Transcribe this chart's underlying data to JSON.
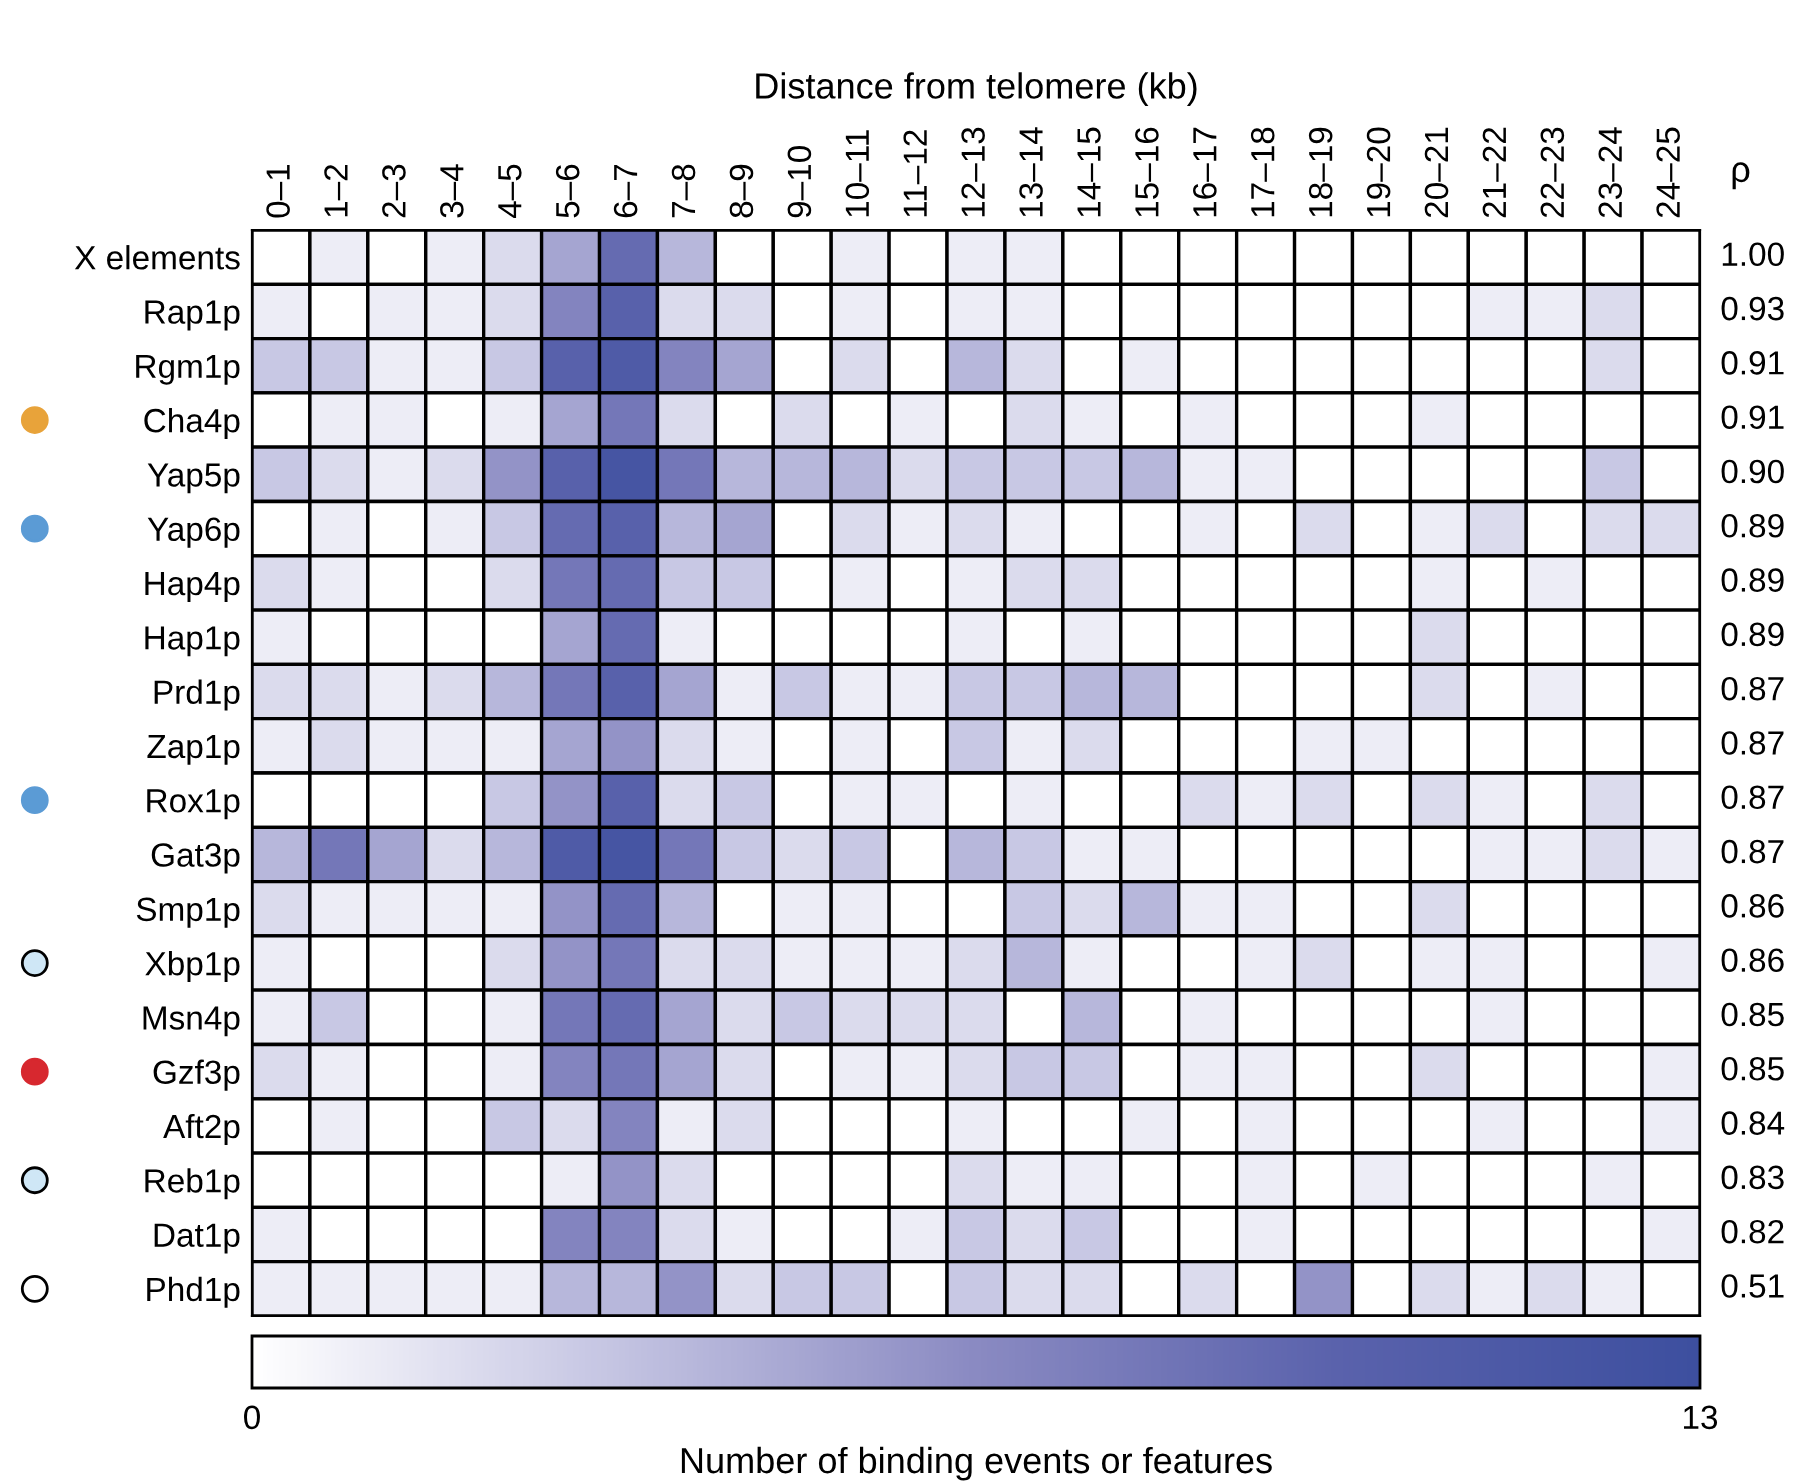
{
  "chart_data": {
    "type": "heatmap",
    "xlabel": "Distance from telomere (kb)",
    "clabel": "Number of binding events or features",
    "annotations": [
      "ρ"
    ],
    "categories": [
      "0–1",
      "1–2",
      "2–3",
      "3–4",
      "4–5",
      "5–6",
      "6–7",
      "7–8",
      "8–9",
      "9–10",
      "10–11",
      "11–12",
      "12–13",
      "13–14",
      "14–15",
      "15–16",
      "16–17",
      "17–18",
      "18–19",
      "19–20",
      "20–21",
      "21–22",
      "22–23",
      "23–24",
      "24–25"
    ],
    "y_categories": [
      "X elements",
      "Rap1p",
      "Rgm1p",
      "Cha4p",
      "Yap5p",
      "Yap6p",
      "Hap4p",
      "Hap1p",
      "Prd1p",
      "Zap1p",
      "Rox1p",
      "Gat3p",
      "Smp1p",
      "Xbp1p",
      "Msn4p",
      "Gzf3p",
      "Aft2p",
      "Reb1p",
      "Dat1p",
      "Phd1p"
    ],
    "y2_categories": [
      "1.00",
      "0.93",
      "0.91",
      "0.91",
      "0.90",
      "0.89",
      "0.89",
      "0.89",
      "0.87",
      "0.87",
      "0.87",
      "0.87",
      "0.86",
      "0.86",
      "0.85",
      "0.85",
      "0.84",
      "0.83",
      "0.82",
      "0.51"
    ],
    "cells": [
      [
        0,
        1,
        0,
        1,
        2,
        5,
        9,
        4,
        0,
        0,
        1,
        0,
        1,
        1,
        0,
        0,
        0,
        0,
        0,
        0,
        0,
        0,
        0,
        0,
        0
      ],
      [
        1,
        0,
        1,
        1,
        2,
        7,
        10,
        2,
        2,
        0,
        1,
        0,
        1,
        1,
        0,
        0,
        0,
        0,
        0,
        0,
        0,
        1,
        1,
        2,
        0
      ],
      [
        3,
        3,
        1,
        1,
        3,
        10,
        11,
        7,
        5,
        0,
        2,
        0,
        4,
        2,
        0,
        1,
        0,
        0,
        0,
        0,
        0,
        0,
        0,
        2,
        0
      ],
      [
        0,
        1,
        1,
        0,
        1,
        5,
        8,
        2,
        0,
        2,
        0,
        1,
        0,
        2,
        1,
        0,
        1,
        0,
        0,
        0,
        1,
        0,
        0,
        0,
        0
      ],
      [
        3,
        2,
        1,
        2,
        6,
        10,
        12,
        8,
        4,
        4,
        4,
        2,
        3,
        3,
        3,
        4,
        1,
        1,
        0,
        0,
        0,
        0,
        0,
        3,
        0
      ],
      [
        0,
        1,
        0,
        1,
        3,
        9,
        10,
        4,
        5,
        0,
        2,
        1,
        2,
        1,
        0,
        0,
        1,
        0,
        2,
        0,
        1,
        2,
        0,
        2,
        2
      ],
      [
        2,
        1,
        0,
        0,
        2,
        8,
        9,
        3,
        3,
        0,
        1,
        0,
        1,
        2,
        2,
        0,
        0,
        0,
        0,
        0,
        1,
        0,
        1,
        0,
        0
      ],
      [
        1,
        0,
        0,
        0,
        0,
        5,
        9,
        1,
        0,
        0,
        0,
        0,
        1,
        0,
        1,
        0,
        0,
        0,
        0,
        0,
        2,
        0,
        0,
        0,
        0
      ],
      [
        2,
        2,
        1,
        2,
        4,
        8,
        10,
        5,
        1,
        3,
        1,
        1,
        3,
        3,
        4,
        4,
        0,
        0,
        0,
        0,
        2,
        0,
        1,
        0,
        0
      ],
      [
        1,
        2,
        1,
        1,
        1,
        5,
        6,
        2,
        1,
        0,
        1,
        0,
        3,
        1,
        2,
        0,
        0,
        0,
        1,
        1,
        0,
        0,
        0,
        0,
        0
      ],
      [
        0,
        0,
        0,
        0,
        3,
        6,
        10,
        2,
        3,
        0,
        1,
        1,
        0,
        1,
        0,
        0,
        2,
        1,
        2,
        0,
        2,
        1,
        0,
        2,
        0
      ],
      [
        4,
        8,
        5,
        2,
        4,
        11,
        12,
        8,
        3,
        2,
        3,
        0,
        4,
        3,
        1,
        1,
        0,
        0,
        0,
        0,
        0,
        1,
        1,
        2,
        1
      ],
      [
        2,
        1,
        1,
        1,
        1,
        6,
        9,
        4,
        0,
        1,
        1,
        0,
        0,
        3,
        2,
        4,
        1,
        1,
        0,
        0,
        2,
        0,
        0,
        0,
        0
      ],
      [
        1,
        0,
        0,
        0,
        2,
        6,
        8,
        2,
        2,
        1,
        1,
        1,
        2,
        4,
        1,
        0,
        0,
        1,
        2,
        0,
        1,
        1,
        0,
        0,
        1
      ],
      [
        1,
        3,
        0,
        0,
        1,
        8,
        9,
        5,
        2,
        3,
        2,
        2,
        2,
        0,
        4,
        0,
        1,
        0,
        0,
        0,
        0,
        1,
        0,
        0,
        0
      ],
      [
        2,
        1,
        0,
        0,
        1,
        7,
        8,
        5,
        2,
        0,
        1,
        1,
        2,
        3,
        3,
        0,
        1,
        1,
        0,
        0,
        2,
        0,
        0,
        0,
        1
      ],
      [
        0,
        1,
        0,
        0,
        3,
        2,
        7,
        1,
        2,
        0,
        0,
        0,
        1,
        0,
        0,
        1,
        0,
        1,
        0,
        0,
        0,
        1,
        0,
        0,
        1
      ],
      [
        0,
        0,
        0,
        0,
        0,
        1,
        6,
        2,
        0,
        0,
        0,
        0,
        2,
        1,
        1,
        0,
        0,
        1,
        0,
        1,
        0,
        0,
        0,
        1,
        0
      ],
      [
        1,
        0,
        0,
        0,
        0,
        7,
        7,
        2,
        1,
        0,
        0,
        1,
        3,
        2,
        3,
        0,
        0,
        1,
        0,
        0,
        0,
        0,
        0,
        0,
        1
      ],
      [
        1,
        1,
        1,
        1,
        1,
        4,
        4,
        6,
        2,
        3,
        3,
        0,
        3,
        2,
        2,
        0,
        2,
        0,
        6,
        0,
        2,
        1,
        2,
        1,
        0
      ]
    ],
    "clim": [
      0,
      13
    ],
    "cticks": [
      0,
      13
    ]
  }
}
